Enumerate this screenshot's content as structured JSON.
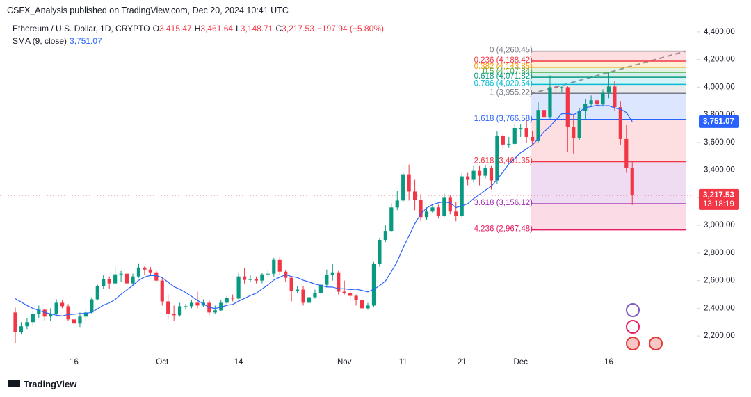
{
  "header": {
    "published": "CSFX_Analysis published on TradingView.com, Dec 20, 2024 10:41 UTC"
  },
  "chart_data": {
    "type": "candlestick",
    "title": "Ethereum / U.S. Dollar, 1D, CRYPTO",
    "ohlc_legend": [
      {
        "key": "O",
        "value": "3,415.47"
      },
      {
        "key": "H",
        "value": "3,461.64"
      },
      {
        "key": "L",
        "value": "3,148.71"
      },
      {
        "key": "C",
        "value": "3,217.53"
      }
    ],
    "change": "−197.94 (−5.80%)",
    "up_color": "#089981",
    "down_color": "#f23645",
    "x": [
      "Sep 6",
      "Sep 7",
      "Sep 8",
      "Sep 9",
      "Sep 10",
      "Sep 11",
      "Sep 12",
      "Sep 13",
      "Sep 14",
      "Sep 15",
      "Sep 16",
      "Sep 17",
      "Sep 18",
      "Sep 19",
      "Sep 20",
      "Sep 21",
      "Sep 22",
      "Sep 23",
      "Sep 24",
      "Sep 25",
      "Sep 26",
      "Sep 27",
      "Sep 28",
      "Sep 29",
      "Sep 30",
      "Oct 1",
      "Oct 2",
      "Oct 3",
      "Oct 4",
      "Oct 5",
      "Oct 6",
      "Oct 7",
      "Oct 8",
      "Oct 9",
      "Oct 10",
      "Oct 11",
      "Oct 12",
      "Oct 13",
      "Oct 14",
      "Oct 15",
      "Oct 16",
      "Oct 17",
      "Oct 18",
      "Oct 19",
      "Oct 20",
      "Oct 21",
      "Oct 22",
      "Oct 23",
      "Oct 24",
      "Oct 25",
      "Oct 26",
      "Oct 27",
      "Oct 28",
      "Oct 29",
      "Oct 30",
      "Oct 31",
      "Nov 1",
      "Nov 2",
      "Nov 3",
      "Nov 4",
      "Nov 5",
      "Nov 6",
      "Nov 7",
      "Nov 8",
      "Nov 9",
      "Nov 10",
      "Nov 11",
      "Nov 12",
      "Nov 13",
      "Nov 14",
      "Nov 15",
      "Nov 16",
      "Nov 17",
      "Nov 18",
      "Nov 19",
      "Nov 20",
      "Nov 21",
      "Nov 22",
      "Nov 23",
      "Nov 24",
      "Nov 25",
      "Nov 26",
      "Nov 27",
      "Nov 28",
      "Nov 29",
      "Nov 30",
      "Dec 1",
      "Dec 2",
      "Dec 3",
      "Dec 4",
      "Dec 5",
      "Dec 6",
      "Dec 7",
      "Dec 8",
      "Dec 9",
      "Dec 10",
      "Dec 11",
      "Dec 12",
      "Dec 13",
      "Dec 14",
      "Dec 15",
      "Dec 16",
      "Dec 17",
      "Dec 18",
      "Dec 19",
      "Dec 20"
    ],
    "open": [
      2370,
      2230,
      2270,
      2300,
      2360,
      2390,
      2340,
      2360,
      2440,
      2415,
      2320,
      2290,
      2340,
      2370,
      2465,
      2560,
      2610,
      2580,
      2645,
      2650,
      2580,
      2630,
      2695,
      2680,
      2660,
      2600,
      2450,
      2360,
      2350,
      2415,
      2415,
      2440,
      2420,
      2440,
      2370,
      2385,
      2440,
      2475,
      2470,
      2630,
      2605,
      2610,
      2600,
      2645,
      2650,
      2750,
      2665,
      2620,
      2525,
      2535,
      2440,
      2480,
      2510,
      2570,
      2640,
      2660,
      2520,
      2510,
      2490,
      2460,
      2400,
      2420,
      2720,
      2895,
      2960,
      3130,
      3180,
      3370,
      3245,
      3185,
      3060,
      3100,
      3130,
      3070,
      3200,
      3100,
      3070,
      3355,
      3330,
      3395,
      3360,
      3415,
      3325,
      3650,
      3585,
      3590,
      3705,
      3705,
      3640,
      3610,
      3835,
      3785,
      4000,
      3995,
      4000,
      3710,
      3630,
      3830,
      3880,
      3905,
      3875,
      3960,
      4005,
      3855,
      3625,
      3415.47
    ],
    "high": [
      2405,
      2300,
      2330,
      2380,
      2420,
      2400,
      2400,
      2465,
      2460,
      2430,
      2340,
      2370,
      2400,
      2480,
      2570,
      2640,
      2630,
      2700,
      2670,
      2665,
      2650,
      2725,
      2705,
      2700,
      2670,
      2620,
      2500,
      2420,
      2440,
      2430,
      2460,
      2520,
      2465,
      2460,
      2420,
      2460,
      2490,
      2500,
      2660,
      2690,
      2640,
      2630,
      2655,
      2675,
      2765,
      2770,
      2675,
      2630,
      2560,
      2560,
      2500,
      2535,
      2580,
      2680,
      2720,
      2670,
      2600,
      2530,
      2500,
      2480,
      2440,
      2735,
      2910,
      3000,
      3160,
      3250,
      3385,
      3440,
      3330,
      3225,
      3130,
      3150,
      3150,
      3230,
      3220,
      3170,
      3375,
      3380,
      3430,
      3430,
      3440,
      3430,
      3680,
      3660,
      3640,
      3735,
      3730,
      3760,
      3680,
      3890,
      3890,
      4085,
      4020,
      4010,
      4010,
      3800,
      3850,
      3915,
      3940,
      3930,
      3985,
      4105,
      4045,
      3900,
      3725,
      3461.64
    ],
    "low": [
      2150,
      2210,
      2250,
      2270,
      2330,
      2310,
      2310,
      2350,
      2400,
      2310,
      2260,
      2260,
      2310,
      2360,
      2460,
      2540,
      2540,
      2570,
      2590,
      2550,
      2570,
      2620,
      2640,
      2640,
      2590,
      2420,
      2320,
      2310,
      2340,
      2390,
      2400,
      2400,
      2410,
      2350,
      2360,
      2380,
      2430,
      2450,
      2465,
      2580,
      2590,
      2580,
      2580,
      2630,
      2630,
      2640,
      2590,
      2450,
      2510,
      2420,
      2430,
      2470,
      2500,
      2550,
      2600,
      2500,
      2500,
      2460,
      2420,
      2360,
      2390,
      2410,
      2700,
      2880,
      2950,
      3110,
      3170,
      3180,
      3110,
      3030,
      3040,
      3090,
      3050,
      3060,
      3080,
      3030,
      3060,
      3290,
      3310,
      3290,
      3340,
      3260,
      3300,
      3550,
      3560,
      3580,
      3640,
      3600,
      3580,
      3600,
      3720,
      3770,
      3960,
      3960,
      3530,
      3520,
      3620,
      3760,
      3860,
      3850,
      3860,
      3920,
      3830,
      3580,
      3380,
      3148.71
    ],
    "close": [
      2230,
      2270,
      2300,
      2360,
      2390,
      2340,
      2360,
      2440,
      2415,
      2320,
      2290,
      2340,
      2370,
      2465,
      2560,
      2610,
      2580,
      2645,
      2650,
      2580,
      2630,
      2695,
      2680,
      2660,
      2600,
      2450,
      2360,
      2350,
      2415,
      2415,
      2440,
      2420,
      2440,
      2370,
      2385,
      2440,
      2475,
      2470,
      2630,
      2605,
      2610,
      2600,
      2645,
      2650,
      2750,
      2665,
      2620,
      2525,
      2535,
      2440,
      2480,
      2510,
      2570,
      2640,
      2660,
      2520,
      2510,
      2490,
      2460,
      2400,
      2420,
      2720,
      2895,
      2960,
      3130,
      3180,
      3370,
      3245,
      3185,
      3060,
      3100,
      3130,
      3070,
      3200,
      3100,
      3070,
      3355,
      3330,
      3395,
      3360,
      3415,
      3325,
      3650,
      3585,
      3590,
      3705,
      3705,
      3640,
      3610,
      3835,
      3785,
      4000,
      3995,
      4000,
      3710,
      3630,
      3830,
      3880,
      3905,
      3875,
      3960,
      4005,
      3855,
      3625,
      3415.47,
      3217.53
    ],
    "overlays": [
      {
        "name": "SMA (9, close)",
        "value_label": "3,751.07",
        "color": "#2962ff",
        "values": [
          2470,
          2445,
          2420,
          2400,
          2385,
          2370,
          2360,
          2350,
          2345,
          2355,
          2357,
          2362,
          2363,
          2371,
          2396,
          2423,
          2439,
          2464,
          2501,
          2533,
          2566,
          2602,
          2626,
          2637,
          2636,
          2621,
          2589,
          2556,
          2538,
          2514,
          2486,
          2457,
          2432,
          2407,
          2399,
          2408,
          2422,
          2428,
          2452,
          2471,
          2492,
          2509,
          2540,
          2569,
          2604,
          2625,
          2642,
          2630,
          2622,
          2603,
          2590,
          2575,
          2566,
          2554,
          2553,
          2542,
          2541,
          2536,
          2538,
          2529,
          2519,
          2536,
          2564,
          2597,
          2665,
          2739,
          2837,
          2924,
          3012,
          3083,
          3125,
          3151,
          3163,
          3171,
          3162,
          3129,
          3141,
          3157,
          3194,
          3223,
          3255,
          3283,
          3333,
          3387,
          3445,
          3484,
          3526,
          3553,
          3581,
          3627,
          3678,
          3717,
          3763,
          3808,
          3809,
          3801,
          3822,
          3852,
          3859,
          3869,
          3865,
          3866,
          3850,
          3841,
          3817,
          3751.07
        ]
      }
    ],
    "fib_levels": [
      {
        "value": 4260.45,
        "label": "0 (4,260.45)",
        "color": "#787b86"
      },
      {
        "value": 4188.42,
        "label": "0.236 (4,188.42)",
        "color": "#f23645"
      },
      {
        "value": 4143.85,
        "label": "0.382 (4,143.85)",
        "color": "#ff9800"
      },
      {
        "value": 4107.84,
        "label": "0.5 (4,107.84)",
        "color": "#4caf50"
      },
      {
        "value": 4071.82,
        "label": "0.618 (4,071.82)",
        "color": "#089981"
      },
      {
        "value": 4020.54,
        "label": "0.786 (4,020.54)",
        "color": "#00bcd4"
      },
      {
        "value": 3955.22,
        "label": "1 (3,955.22)",
        "color": "#787b86"
      },
      {
        "value": 3766.58,
        "label": "1.618 (3,766.58)",
        "color": "#2962ff"
      },
      {
        "value": 3461.35,
        "label": "2.618 (3,461.35)",
        "color": "#f23645"
      },
      {
        "value": 3156.12,
        "label": "3.618 (3,156.12)",
        "color": "#9c27b0"
      },
      {
        "value": 2967.48,
        "label": "4.236 (2,967.48)",
        "color": "#e91e63"
      }
    ],
    "price_tags": [
      {
        "value": 3751.07,
        "label": "3,751.07",
        "color": "#2962ff"
      },
      {
        "value": 3217.53,
        "label": "3,217.53",
        "countdown": "13:18:19",
        "color": "#f23645"
      }
    ],
    "ylim": [
      2090,
      4480
    ],
    "yticks": [
      {
        "value": 2200,
        "label": "2,200.00"
      },
      {
        "value": 2400,
        "label": "2,400.00"
      },
      {
        "value": 2600,
        "label": "2,600.00"
      },
      {
        "value": 2800,
        "label": "2,800.00"
      },
      {
        "value": 3000,
        "label": "3,000.00"
      },
      {
        "value": 3200,
        "label": "3,200.00"
      },
      {
        "value": 3400,
        "label": "3,400.00"
      },
      {
        "value": 3600,
        "label": "3,600.00"
      },
      {
        "value": 3800,
        "label": "3,800.00"
      },
      {
        "value": 4000,
        "label": "4,000.00"
      },
      {
        "value": 4200,
        "label": "4,200.00"
      },
      {
        "value": 4400,
        "label": "4,400.00"
      }
    ],
    "xticks": [
      {
        "value": "Sep 16",
        "label": "16"
      },
      {
        "value": "Oct 1",
        "label": "Oct"
      },
      {
        "value": "Oct 14",
        "label": "14"
      },
      {
        "value": "Nov 1",
        "label": "Nov"
      },
      {
        "value": "Nov 11",
        "label": "11"
      },
      {
        "value": "Nov 21",
        "label": "21"
      },
      {
        "value": "Dec 1",
        "label": "Dec"
      },
      {
        "value": "Dec 16",
        "label": "16"
      }
    ]
  },
  "footer": {
    "brand": "TradingView"
  }
}
